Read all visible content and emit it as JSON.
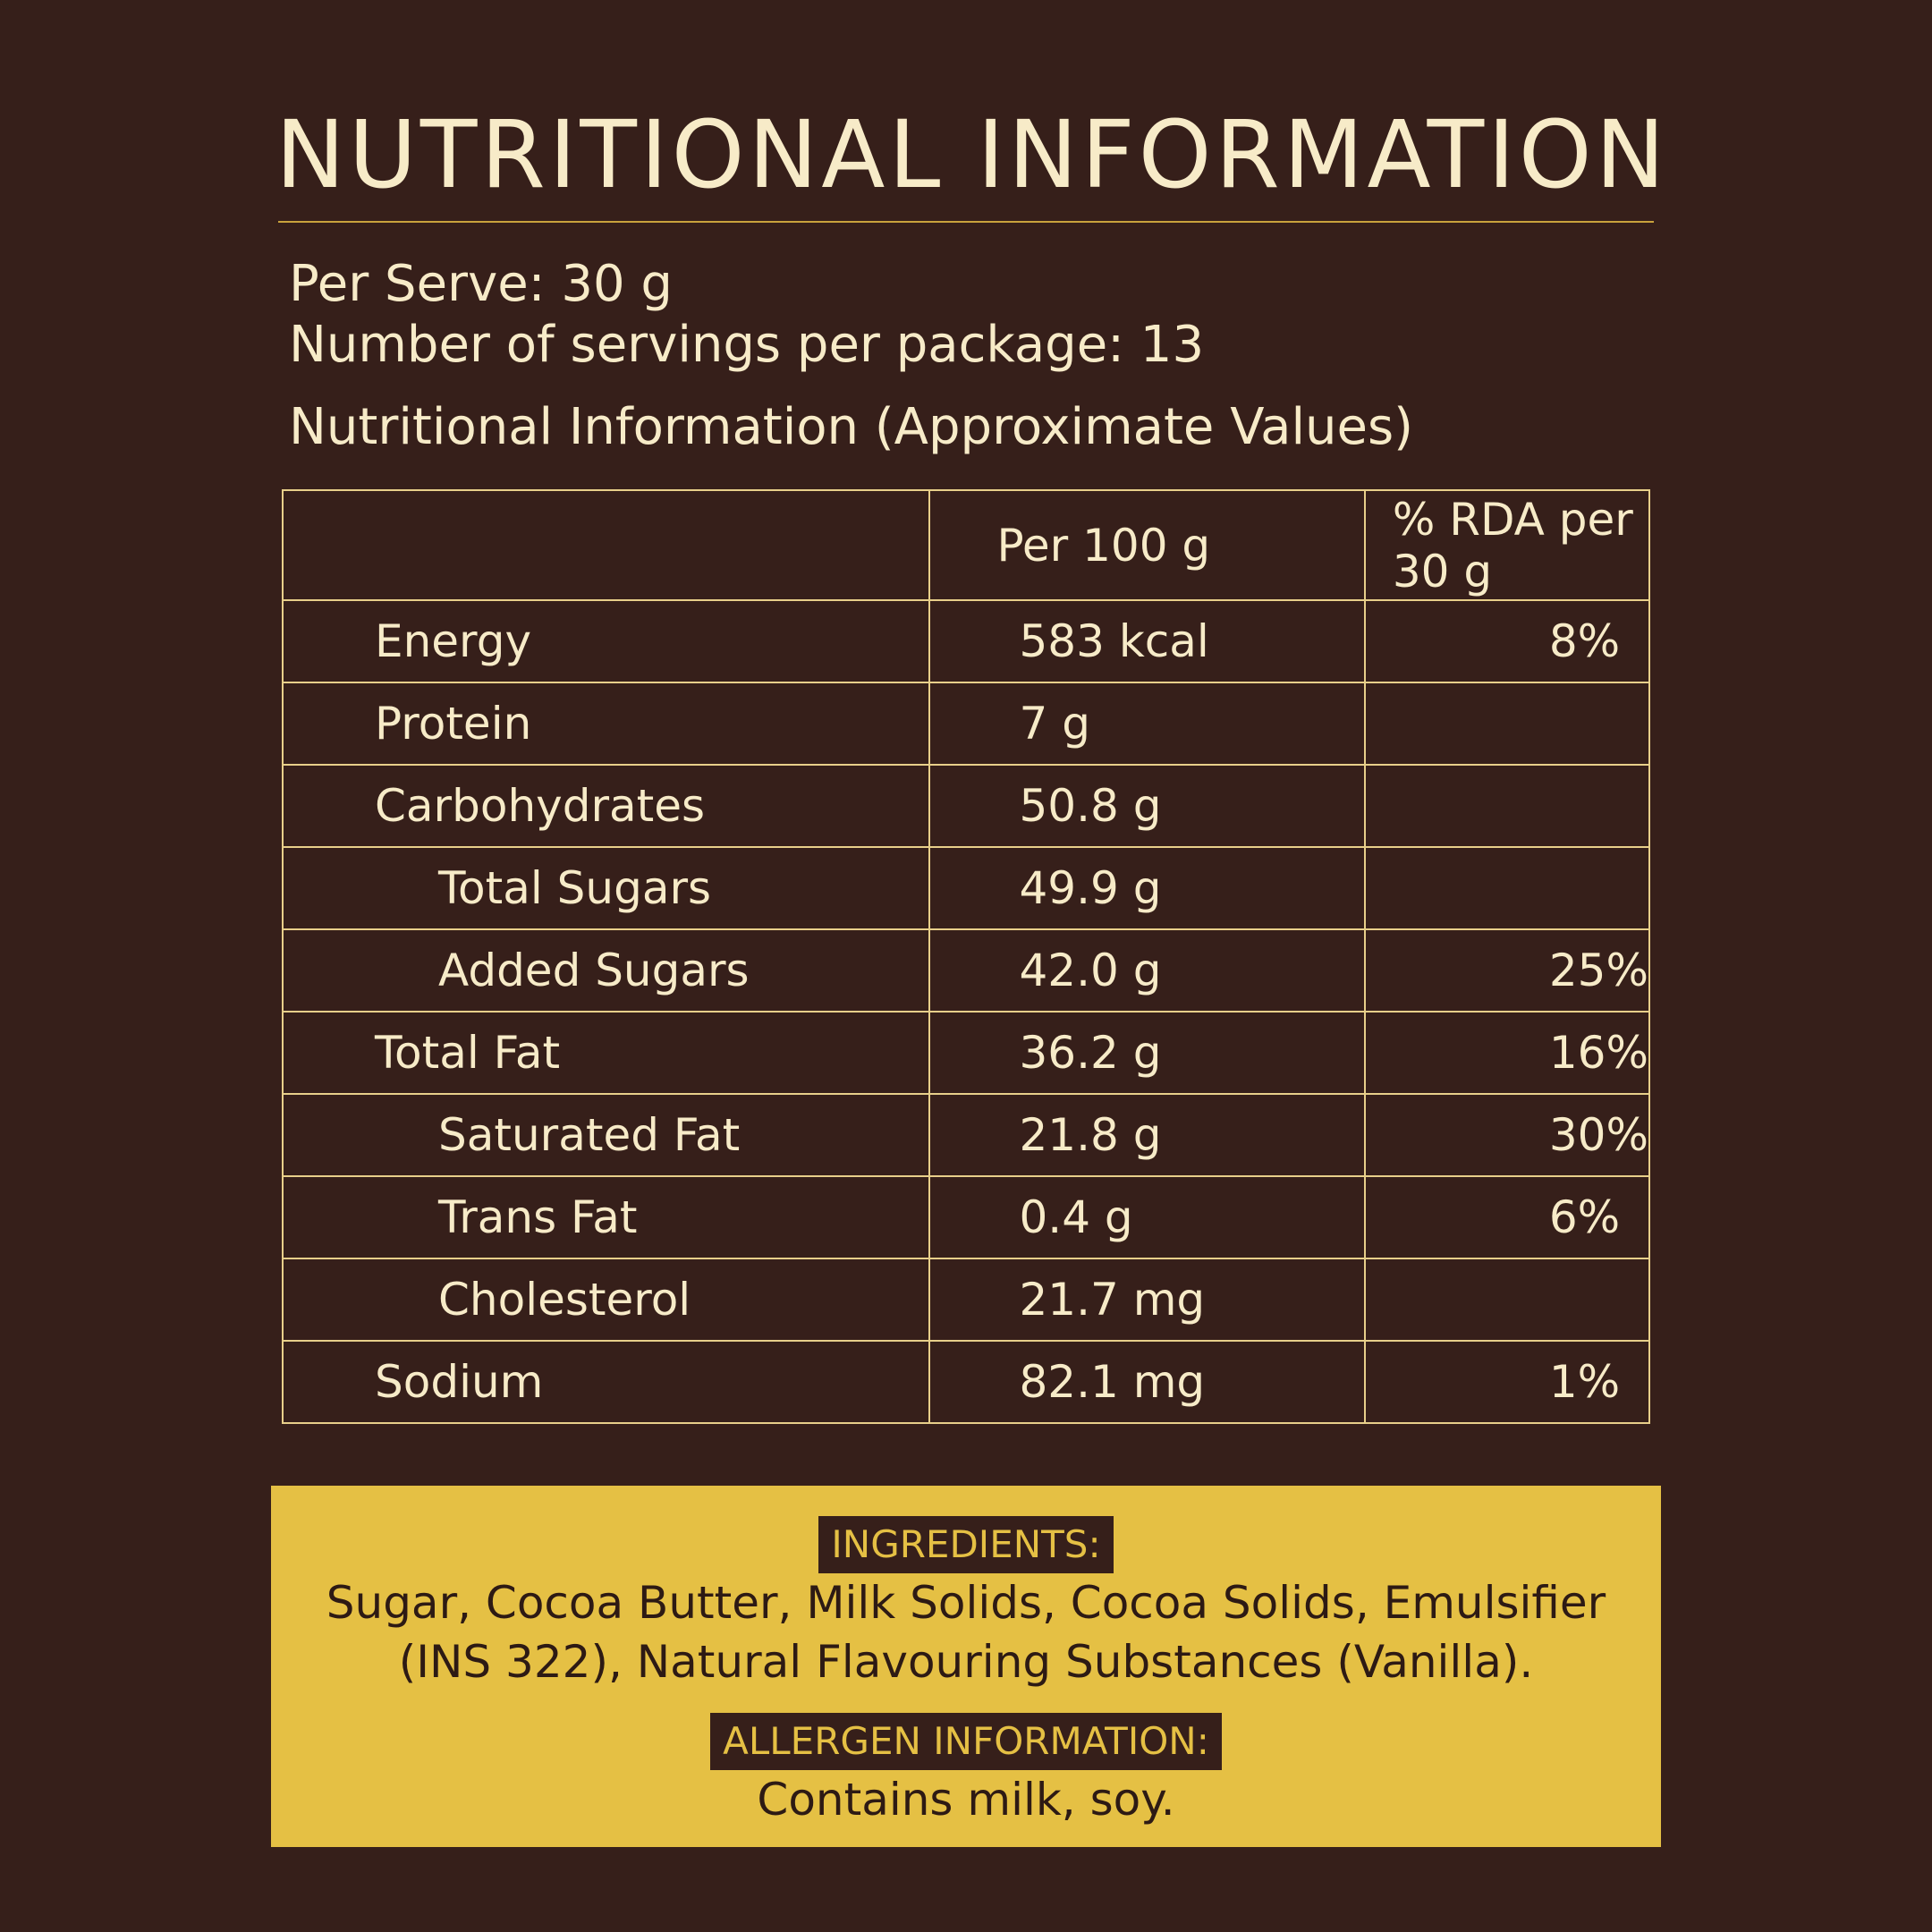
{
  "title": "NUTRITIONAL INFORMATION",
  "per_serve": "Per Serve: 30 g",
  "servings": "Number of servings per package: 13",
  "subtitle": "Nutritional Information (Approximate Values)",
  "table": {
    "headers": [
      "",
      "Per 100 g",
      "% RDA per 30 g"
    ],
    "rows": [
      {
        "name": "Energy",
        "per100": "583 kcal",
        "rda": "8%"
      },
      {
        "name": "Protein",
        "per100": "7 g",
        "rda": ""
      },
      {
        "name": "Carbohydrates",
        "per100": "50.8 g",
        "rda": ""
      },
      {
        "name": "Total Sugars",
        "per100": "49.9 g",
        "rda": ""
      },
      {
        "name": "Added Sugars",
        "per100": "42.0 g",
        "rda": "25%"
      },
      {
        "name": "Total Fat",
        "per100": "36.2 g",
        "rda": "16%"
      },
      {
        "name": "Saturated Fat",
        "per100": "21.8 g",
        "rda": "30%"
      },
      {
        "name": "Trans Fat",
        "per100": "0.4 g",
        "rda": "6%"
      },
      {
        "name": "Cholesterol",
        "per100": "21.7 mg",
        "rda": ""
      },
      {
        "name": "Sodium",
        "per100": "82.1 mg",
        "rda": "1%"
      }
    ]
  },
  "ingredients": {
    "label": "INGREDIENTS:",
    "line1": "Sugar, Cocoa Butter, Milk Solids, Cocoa Solids, Emulsifier",
    "line2": "(INS 322), Natural Flavouring Substances (Vanilla)."
  },
  "allergen": {
    "label": "ALLERGEN INFORMATION:",
    "text": "Contains milk, soy."
  },
  "colors": {
    "background": "#361f1a",
    "text": "#f7ebc8",
    "accent": "#e5c044"
  }
}
